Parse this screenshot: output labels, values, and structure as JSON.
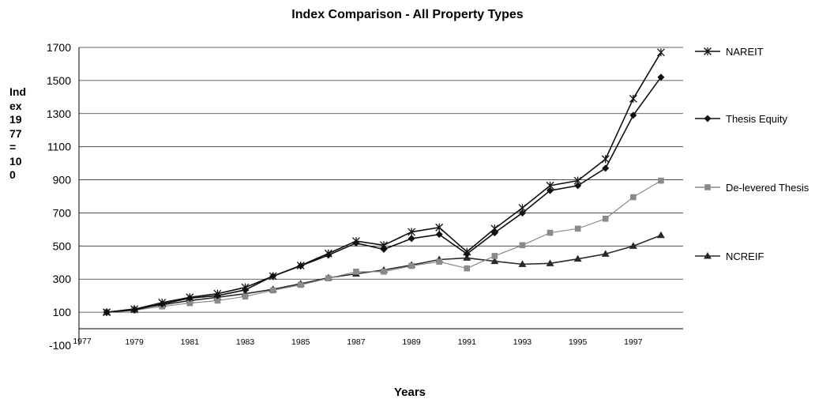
{
  "chart_data": {
    "type": "line",
    "title": "Index Comparison - All Property Types",
    "ylabel": "Ind\nex\n19\n77\n=\n10\n0",
    "xlabel": "Years",
    "ylim": [
      -100,
      1700
    ],
    "yticks": [
      -100,
      100,
      300,
      500,
      700,
      900,
      1100,
      1300,
      1500,
      1700
    ],
    "grid": true,
    "legend_position": "right",
    "x_tick_labels": [
      "1977",
      "1979",
      "1981",
      "1983",
      "1985",
      "1987",
      "1989",
      "1991",
      "1993",
      "1995",
      "1997"
    ],
    "x": [
      1978,
      1979,
      1980,
      1981,
      1982,
      1983,
      1984,
      1985,
      1986,
      1987,
      1988,
      1989,
      1990,
      1991,
      1992,
      1993,
      1994,
      1995,
      1996,
      1997,
      1998
    ],
    "series": [
      {
        "name": "NAREIT",
        "marker": "asterisk",
        "color": "#111111",
        "values": [
          100,
          118,
          158,
          190,
          212,
          250,
          318,
          382,
          455,
          530,
          505,
          585,
          612,
          465,
          605,
          730,
          865,
          895,
          1025,
          1390,
          1670
        ]
      },
      {
        "name": "Thesis Equity",
        "marker": "diamond",
        "color": "#111111",
        "values": [
          100,
          113,
          150,
          185,
          200,
          235,
          318,
          380,
          445,
          518,
          480,
          545,
          570,
          452,
          580,
          700,
          835,
          865,
          970,
          1290,
          1520
        ]
      },
      {
        "name": "De-levered Thesis",
        "marker": "square",
        "color": "#8a8a8a",
        "values": [
          100,
          112,
          135,
          155,
          170,
          195,
          232,
          265,
          305,
          345,
          345,
          380,
          405,
          365,
          440,
          505,
          580,
          605,
          665,
          795,
          895
        ]
      },
      {
        "name": "NCREIF",
        "marker": "triangle",
        "color": "#2a2a2a",
        "values": [
          100,
          120,
          145,
          170,
          190,
          212,
          238,
          272,
          308,
          332,
          355,
          385,
          418,
          428,
          408,
          390,
          395,
          422,
          452,
          500,
          565
        ]
      }
    ]
  }
}
